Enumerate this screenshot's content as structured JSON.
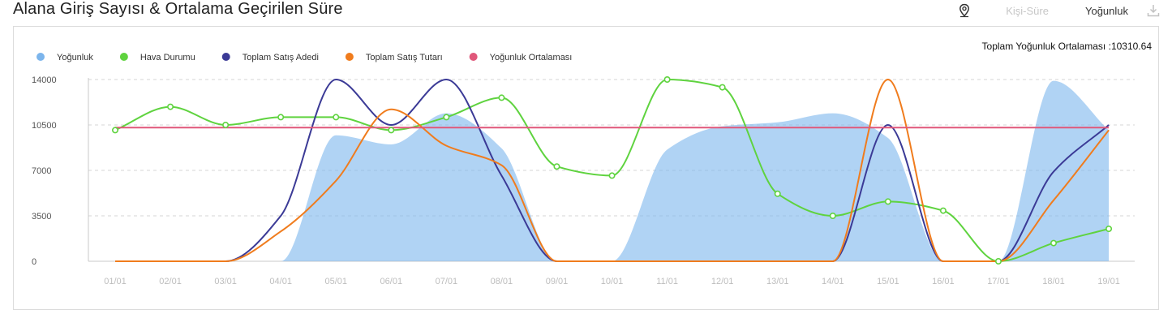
{
  "header": {
    "title": "Alana Giriş Sayısı & Ortalama Geçirilen Süre",
    "toolbar": {
      "location_icon": "map-pin-icon",
      "kisi_sure_label": "Kişi-Süre",
      "yogunluk_label": "Yoğunluk",
      "download_icon": "download-icon"
    }
  },
  "chart": {
    "average_note": "Toplam Yoğunluk Ortalaması :10310.64"
  },
  "chart_data": {
    "type": "line",
    "categories": [
      "01/01",
      "02/01",
      "03/01",
      "04/01",
      "05/01",
      "06/01",
      "07/01",
      "08/01",
      "09/01",
      "10/01",
      "11/01",
      "12/01",
      "13/01",
      "14/01",
      "15/01",
      "16/01",
      "17/01",
      "18/01",
      "19/01"
    ],
    "ylim": [
      0,
      14000
    ],
    "yticks": [
      0,
      3500,
      7000,
      10500,
      14000
    ],
    "grid": true,
    "legend_position": "top-left",
    "series": [
      {
        "name": "Yoğunluk",
        "type": "area",
        "color": "#7cb5ec",
        "values": [
          0,
          0,
          0,
          0,
          9700,
          9000,
          11400,
          8700,
          0,
          0,
          8600,
          10400,
          10700,
          11400,
          9500,
          0,
          0,
          13900,
          10100
        ]
      },
      {
        "name": "Hava Durumu",
        "type": "line",
        "color": "#5fd33f",
        "markers": true,
        "values": [
          10100,
          11900,
          10500,
          11100,
          11100,
          10100,
          11100,
          12600,
          7300,
          6600,
          14000,
          13400,
          5200,
          3500,
          4600,
          3900,
          0,
          1400,
          2500
        ]
      },
      {
        "name": "Toplam Satış Adedi",
        "type": "line",
        "color": "#3b3a96",
        "values": [
          0,
          0,
          0,
          3500,
          14000,
          10500,
          14000,
          6600,
          0,
          0,
          0,
          0,
          0,
          0,
          10500,
          0,
          0,
          6900,
          10500
        ]
      },
      {
        "name": "Toplam Satış Tutarı",
        "type": "line",
        "color": "#f07c1d",
        "values": [
          0,
          0,
          0,
          2300,
          6200,
          11700,
          8900,
          7400,
          0,
          0,
          0,
          0,
          0,
          0,
          14000,
          0,
          0,
          4700,
          10100
        ]
      },
      {
        "name": "Yoğunluk Ortalaması",
        "type": "line",
        "color": "#e0577a",
        "values": [
          10300,
          10300,
          10300,
          10300,
          10300,
          10300,
          10300,
          10300,
          10300,
          10300,
          10300,
          10300,
          10300,
          10300,
          10300,
          10300,
          10300,
          10300,
          10300
        ]
      }
    ]
  }
}
